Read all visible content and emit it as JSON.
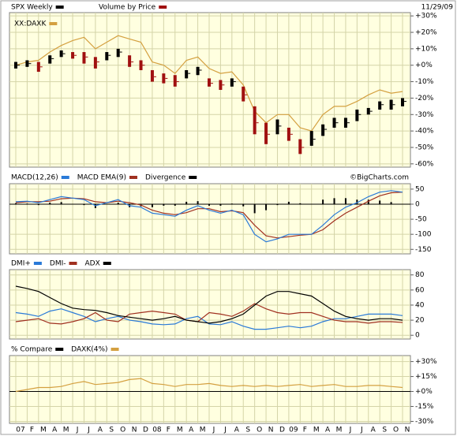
{
  "chart_data": [
    {
      "type": "hilo",
      "title": "SPX Weekly",
      "title_color": "#000000",
      "date": "11/29/09",
      "legend_extra": [
        {
          "name": "Volume by Price",
          "color": "#a01010"
        }
      ],
      "down_color": "#a01010",
      "ylim": [
        -62,
        32
      ],
      "yticks": [
        {
          "value": 30,
          "label": "+30%"
        },
        {
          "value": 20,
          "label": "+20%"
        },
        {
          "value": 10,
          "label": "+10%"
        },
        {
          "value": 0,
          "label": "+0%"
        },
        {
          "value": -10,
          "label": "-10%"
        },
        {
          "value": -20,
          "label": "-20%"
        },
        {
          "value": -30,
          "label": "-30%"
        },
        {
          "value": -40,
          "label": "-40%"
        },
        {
          "value": -50,
          "label": "-50%"
        },
        {
          "value": -60,
          "label": "-60%"
        }
      ],
      "series": [
        {
          "name": "SPX Weekly",
          "color": "#000000",
          "values": [
            0,
            1,
            -1,
            4,
            7,
            6,
            5,
            2,
            6,
            8,
            2,
            0,
            -7,
            -8,
            -10,
            -5,
            -3,
            -11,
            -12,
            -10,
            -18,
            -35,
            -42,
            -37,
            -42,
            -50,
            -45,
            -39,
            -35,
            -35,
            -30,
            -28,
            -24,
            -24,
            -22
          ],
          "high": [
            2,
            3,
            2,
            6,
            9,
            8,
            8,
            5,
            8,
            10,
            6,
            3,
            -3,
            -5,
            -6,
            -3,
            -1,
            -8,
            -9,
            -8,
            -13,
            -25,
            -35,
            -33,
            -38,
            -45,
            -40,
            -36,
            -32,
            -32,
            -27,
            -26,
            -22,
            -21,
            -20
          ],
          "low": [
            -2,
            -1,
            -4,
            1,
            5,
            4,
            1,
            -2,
            3,
            5,
            -1,
            -3,
            -10,
            -11,
            -13,
            -8,
            -6,
            -13,
            -15,
            -13,
            -22,
            -42,
            -48,
            -42,
            -46,
            -54,
            -49,
            -43,
            -38,
            -38,
            -34,
            -30,
            -27,
            -27,
            -25
          ]
        },
        {
          "name": "XX:DAXK",
          "color": "#d4a040",
          "values": [
            0,
            2,
            3,
            8,
            12,
            15,
            17,
            10,
            14,
            18,
            16,
            14,
            2,
            0,
            -5,
            3,
            5,
            -2,
            -5,
            -4,
            -12,
            -28,
            -35,
            -30,
            -30,
            -38,
            -40,
            -30,
            -25,
            -25,
            -22,
            -18,
            -15,
            -17,
            -16
          ]
        }
      ]
    },
    {
      "type": "macd",
      "annotation": "©BigCharts.com",
      "ylim": [
        -165,
        68
      ],
      "yticks": [
        50,
        0,
        -50,
        -100,
        -150
      ],
      "series": [
        {
          "name": "MACD(12,26)",
          "color": "#2a7ad8",
          "values": [
            8,
            10,
            5,
            15,
            25,
            20,
            15,
            -5,
            5,
            15,
            -5,
            -10,
            -30,
            -35,
            -40,
            -20,
            -5,
            -20,
            -30,
            -20,
            -35,
            -100,
            -125,
            -115,
            -100,
            -100,
            -100,
            -70,
            -35,
            -10,
            5,
            25,
            40,
            45,
            40
          ]
        },
        {
          "name": "MACD EMA(9)",
          "color": "#a03020",
          "values": [
            5,
            8,
            8,
            10,
            18,
            20,
            18,
            8,
            5,
            10,
            5,
            -3,
            -20,
            -30,
            -35,
            -28,
            -15,
            -15,
            -25,
            -22,
            -28,
            -70,
            -105,
            -112,
            -108,
            -103,
            -100,
            -85,
            -55,
            -30,
            -10,
            10,
            28,
            38,
            40
          ]
        },
        {
          "name": "Divergence",
          "color": "#000000",
          "values": [
            3,
            2,
            -3,
            5,
            7,
            0,
            -3,
            -13,
            0,
            5,
            -10,
            -7,
            -10,
            -5,
            -5,
            8,
            10,
            -5,
            -5,
            2,
            -7,
            -30,
            -20,
            -3,
            8,
            3,
            0,
            15,
            20,
            20,
            15,
            15,
            12,
            7,
            0
          ]
        }
      ]
    },
    {
      "type": "line",
      "ylim": [
        -5,
        87
      ],
      "yticks": [
        80,
        60,
        40,
        20,
        0
      ],
      "series": [
        {
          "name": "DMI+",
          "color": "#2a7ad8",
          "values": [
            30,
            28,
            25,
            32,
            35,
            30,
            25,
            18,
            22,
            25,
            20,
            18,
            15,
            14,
            15,
            22,
            25,
            15,
            14,
            18,
            12,
            8,
            8,
            10,
            12,
            10,
            12,
            18,
            22,
            22,
            25,
            28,
            28,
            28,
            26
          ]
        },
        {
          "name": "DMI-",
          "color": "#a03020",
          "values": [
            18,
            20,
            22,
            16,
            15,
            18,
            22,
            30,
            20,
            18,
            28,
            30,
            32,
            30,
            28,
            20,
            18,
            30,
            28,
            25,
            32,
            42,
            35,
            30,
            28,
            30,
            30,
            25,
            20,
            18,
            18,
            16,
            18,
            18,
            17
          ]
        },
        {
          "name": "ADX",
          "color": "#000000",
          "values": [
            65,
            62,
            58,
            50,
            42,
            36,
            34,
            33,
            30,
            26,
            24,
            22,
            20,
            22,
            25,
            20,
            18,
            16,
            18,
            22,
            28,
            40,
            52,
            58,
            58,
            55,
            52,
            42,
            32,
            25,
            22,
            20,
            22,
            22,
            20
          ]
        }
      ]
    },
    {
      "type": "compare",
      "title": "% Compare",
      "title_color": "#000000",
      "ylim": [
        -32,
        36
      ],
      "yticks": [
        {
          "value": 30,
          "label": "+30%"
        },
        {
          "value": 15,
          "label": "+15%"
        },
        {
          "value": 0,
          "label": "+0%"
        },
        {
          "value": -15,
          "label": "-15%"
        },
        {
          "value": -30,
          "label": "-30%"
        }
      ],
      "categories": [
        "07",
        "F",
        "M",
        "A",
        "M",
        "J",
        "J",
        "A",
        "S",
        "O",
        "N",
        "D",
        "08",
        "F",
        "M",
        "A",
        "M",
        "J",
        "J",
        "A",
        "S",
        "O",
        "N",
        "D",
        "09",
        "F",
        "M",
        "A",
        "M",
        "J",
        "J",
        "A",
        "S",
        "O",
        "N"
      ],
      "series": [
        {
          "name": "DAXK(4%)",
          "color": "#d4a040",
          "values": [
            0,
            2,
            4,
            4,
            5,
            8,
            10,
            7,
            8,
            9,
            12,
            13,
            8,
            7,
            5,
            7,
            7,
            8,
            6,
            5,
            6,
            5,
            6,
            5,
            6,
            7,
            5,
            6,
            7,
            5,
            5,
            6,
            6,
            5,
            4
          ]
        }
      ]
    }
  ]
}
